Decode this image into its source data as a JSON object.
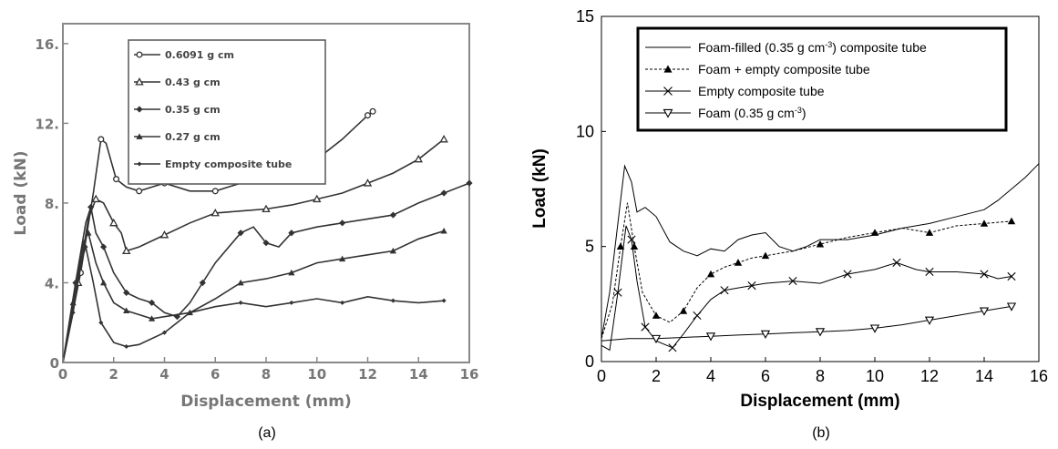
{
  "chart_data": [
    {
      "type": "line",
      "panel_label": "(a)",
      "xlabel": "Displacement (mm)",
      "ylabel": "Load (kN)",
      "xlim": [
        0,
        16
      ],
      "ylim": [
        0,
        17
      ],
      "x_ticks": [
        0,
        2,
        4,
        6,
        8,
        10,
        12,
        14,
        16
      ],
      "y_ticks": [
        0,
        4,
        8,
        12,
        16
      ],
      "y_tick_labels": [
        "0",
        "4.",
        "8.",
        "12.",
        "16."
      ],
      "legend_position": "top-center",
      "series": [
        {
          "name": "0.6091 g cm",
          "marker": "circle",
          "points": [
            [
              0,
              0
            ],
            [
              0.7,
              4.5
            ],
            [
              1.2,
              8.5
            ],
            [
              1.5,
              11.2
            ],
            [
              1.7,
              11.0
            ],
            [
              2.1,
              9.2
            ],
            [
              2.5,
              8.8
            ],
            [
              3,
              8.6
            ],
            [
              3.5,
              8.8
            ],
            [
              4,
              9.0
            ],
            [
              5,
              8.6
            ],
            [
              6,
              8.6
            ],
            [
              7,
              9.0
            ],
            [
              8,
              9.2
            ],
            [
              9,
              9.5
            ],
            [
              10,
              10.2
            ],
            [
              11,
              11.2
            ],
            [
              12,
              12.4
            ],
            [
              12.2,
              12.6
            ]
          ]
        },
        {
          "name": "0.43 g cm",
          "marker": "triangle",
          "points": [
            [
              0,
              0
            ],
            [
              0.6,
              4
            ],
            [
              1.0,
              7.2
            ],
            [
              1.3,
              8.2
            ],
            [
              1.6,
              8.0
            ],
            [
              2.0,
              7.0
            ],
            [
              2.3,
              6.5
            ],
            [
              2.5,
              5.6
            ],
            [
              3,
              5.8
            ],
            [
              4,
              6.4
            ],
            [
              5,
              7.0
            ],
            [
              6,
              7.5
            ],
            [
              7,
              7.6
            ],
            [
              8,
              7.7
            ],
            [
              9,
              7.9
            ],
            [
              10,
              8.2
            ],
            [
              11,
              8.5
            ],
            [
              12,
              9.0
            ],
            [
              13,
              9.5
            ],
            [
              14,
              10.2
            ],
            [
              15,
              11.2
            ]
          ]
        },
        {
          "name": "0.35 g cm",
          "marker": "diamond",
          "points": [
            [
              0,
              0
            ],
            [
              0.5,
              4
            ],
            [
              0.9,
              7.0
            ],
            [
              1.1,
              7.8
            ],
            [
              1.3,
              6.5
            ],
            [
              1.6,
              5.8
            ],
            [
              2,
              4.5
            ],
            [
              2.5,
              3.5
            ],
            [
              3,
              3.2
            ],
            [
              3.5,
              3.0
            ],
            [
              4,
              2.5
            ],
            [
              4.5,
              2.3
            ],
            [
              5,
              3.0
            ],
            [
              5.5,
              4.0
            ],
            [
              6,
              5.0
            ],
            [
              7,
              6.5
            ],
            [
              7.5,
              6.8
            ],
            [
              8,
              6.0
            ],
            [
              8.5,
              5.8
            ],
            [
              9,
              6.5
            ],
            [
              10,
              6.8
            ],
            [
              11,
              7.0
            ],
            [
              12,
              7.2
            ],
            [
              13,
              7.4
            ],
            [
              14,
              8.0
            ],
            [
              15,
              8.5
            ],
            [
              16,
              9.0
            ]
          ]
        },
        {
          "name": "0.27 g cm",
          "marker": "triangle-filled",
          "points": [
            [
              0,
              0
            ],
            [
              0.4,
              3
            ],
            [
              0.8,
              6.0
            ],
            [
              1.0,
              6.5
            ],
            [
              1.3,
              5.0
            ],
            [
              1.6,
              4.0
            ],
            [
              2,
              3.0
            ],
            [
              2.5,
              2.6
            ],
            [
              3,
              2.4
            ],
            [
              3.5,
              2.2
            ],
            [
              4,
              2.3
            ],
            [
              5,
              2.5
            ],
            [
              6,
              3.2
            ],
            [
              7,
              4.0
            ],
            [
              8,
              4.2
            ],
            [
              9,
              4.5
            ],
            [
              10,
              5.0
            ],
            [
              11,
              5.2
            ],
            [
              12,
              5.4
            ],
            [
              13,
              5.6
            ],
            [
              14,
              6.2
            ],
            [
              15,
              6.6
            ]
          ]
        },
        {
          "name": "Empty composite tube",
          "marker": "diamond-small",
          "points": [
            [
              0,
              0
            ],
            [
              0.4,
              2.5
            ],
            [
              0.7,
              5.0
            ],
            [
              0.9,
              5.8
            ],
            [
              1.2,
              4.0
            ],
            [
              1.5,
              2.0
            ],
            [
              2,
              1.0
            ],
            [
              2.5,
              0.8
            ],
            [
              3,
              0.9
            ],
            [
              4,
              1.5
            ],
            [
              4.5,
              2.0
            ],
            [
              5,
              2.5
            ],
            [
              6,
              2.8
            ],
            [
              7,
              3.0
            ],
            [
              8,
              2.8
            ],
            [
              9,
              3.0
            ],
            [
              10,
              3.2
            ],
            [
              11,
              3.0
            ],
            [
              12,
              3.3
            ],
            [
              13,
              3.1
            ],
            [
              14,
              3.0
            ],
            [
              15,
              3.1
            ]
          ]
        }
      ]
    },
    {
      "type": "line",
      "panel_label": "(b)",
      "xlabel": "Displacement (mm)",
      "ylabel": "Load (kN)",
      "xlim": [
        0,
        16
      ],
      "ylim": [
        0,
        15
      ],
      "x_ticks": [
        0,
        2,
        4,
        6,
        8,
        10,
        12,
        14,
        16
      ],
      "y_ticks": [
        0,
        5,
        10,
        15
      ],
      "legend_position": "top-center",
      "legend": [
        {
          "text": "Foam-filled (0.35 g cm",
          "sup": "-3",
          "suffix": ") composite tube",
          "marker": "none",
          "dash": "solid"
        },
        {
          "text": "Foam + empty composite  tube",
          "sup": "",
          "suffix": "",
          "marker": "triangle-filled",
          "dash": "dashed"
        },
        {
          "text": "Empty composite tube",
          "sup": "",
          "suffix": "",
          "marker": "x",
          "dash": "solid"
        },
        {
          "text": "Foam (0.35 g cm",
          "sup": "-3",
          "suffix": ")",
          "marker": "triangle-down",
          "dash": "solid"
        }
      ],
      "series": [
        {
          "name": "Foam-filled (0.35 g cm-3) composite tube",
          "marker": "none",
          "dash": "solid",
          "points": [
            [
              0,
              1
            ],
            [
              0.3,
              3
            ],
            [
              0.6,
              6
            ],
            [
              0.85,
              8.5
            ],
            [
              1.1,
              7.8
            ],
            [
              1.3,
              6.5
            ],
            [
              1.6,
              6.7
            ],
            [
              2,
              6.3
            ],
            [
              2.5,
              5.2
            ],
            [
              3,
              4.8
            ],
            [
              3.5,
              4.6
            ],
            [
              4,
              4.9
            ],
            [
              4.5,
              4.8
            ],
            [
              5,
              5.3
            ],
            [
              5.5,
              5.5
            ],
            [
              6,
              5.6
            ],
            [
              6.5,
              5.0
            ],
            [
              7,
              4.8
            ],
            [
              7.5,
              5.0
            ],
            [
              8,
              5.3
            ],
            [
              9,
              5.3
            ],
            [
              10,
              5.5
            ],
            [
              11,
              5.8
            ],
            [
              12,
              6.0
            ],
            [
              13,
              6.3
            ],
            [
              14,
              6.6
            ],
            [
              14.5,
              7.0
            ],
            [
              15,
              7.5
            ],
            [
              15.5,
              8.0
            ],
            [
              16,
              8.6
            ]
          ]
        },
        {
          "name": "Foam + empty composite  tube",
          "marker": "triangle-filled",
          "dash": "dashed",
          "points": [
            [
              0,
              1
            ],
            [
              0.4,
              2.5
            ],
            [
              0.7,
              5
            ],
            [
              0.95,
              6.9
            ],
            [
              1.2,
              5
            ],
            [
              1.5,
              3
            ],
            [
              2,
              2.0
            ],
            [
              2.5,
              1.7
            ],
            [
              3,
              2.2
            ],
            [
              3.5,
              3.2
            ],
            [
              4,
              3.8
            ],
            [
              4.5,
              4.1
            ],
            [
              5,
              4.3
            ],
            [
              5.5,
              4.5
            ],
            [
              6,
              4.6
            ],
            [
              7,
              4.8
            ],
            [
              8,
              5.1
            ],
            [
              9,
              5.4
            ],
            [
              10,
              5.6
            ],
            [
              11,
              5.8
            ],
            [
              12,
              5.6
            ],
            [
              13,
              5.9
            ],
            [
              14,
              6.0
            ],
            [
              15,
              6.1
            ]
          ]
        },
        {
          "name": "Empty composite tube",
          "marker": "x",
          "dash": "solid",
          "points": [
            [
              0,
              0.7
            ],
            [
              0.3,
              0.5
            ],
            [
              0.6,
              3
            ],
            [
              0.9,
              5.9
            ],
            [
              1.1,
              5.3
            ],
            [
              1.3,
              3.5
            ],
            [
              1.6,
              1.5
            ],
            [
              2,
              0.9
            ],
            [
              2.6,
              0.6
            ],
            [
              3,
              1.2
            ],
            [
              3.5,
              2
            ],
            [
              4,
              2.7
            ],
            [
              4.5,
              3.1
            ],
            [
              5,
              3.2
            ],
            [
              5.5,
              3.3
            ],
            [
              6,
              3.4
            ],
            [
              7,
              3.5
            ],
            [
              8,
              3.4
            ],
            [
              9,
              3.8
            ],
            [
              10,
              4.0
            ],
            [
              10.8,
              4.3
            ],
            [
              11.5,
              4.0
            ],
            [
              12,
              3.9
            ],
            [
              13,
              3.9
            ],
            [
              14,
              3.8
            ],
            [
              14.5,
              3.6
            ],
            [
              15,
              3.7
            ]
          ]
        },
        {
          "name": "Foam (0.35 g cm-3)",
          "marker": "triangle-down",
          "dash": "solid",
          "points": [
            [
              0,
              0.9
            ],
            [
              1,
              1.0
            ],
            [
              2,
              1.0
            ],
            [
              3,
              1.05
            ],
            [
              4,
              1.1
            ],
            [
              5,
              1.15
            ],
            [
              6,
              1.2
            ],
            [
              7,
              1.25
            ],
            [
              8,
              1.3
            ],
            [
              9,
              1.35
            ],
            [
              10,
              1.45
            ],
            [
              11,
              1.6
            ],
            [
              12,
              1.8
            ],
            [
              13,
              2.0
            ],
            [
              14,
              2.2
            ],
            [
              15,
              2.4
            ]
          ]
        }
      ]
    }
  ]
}
